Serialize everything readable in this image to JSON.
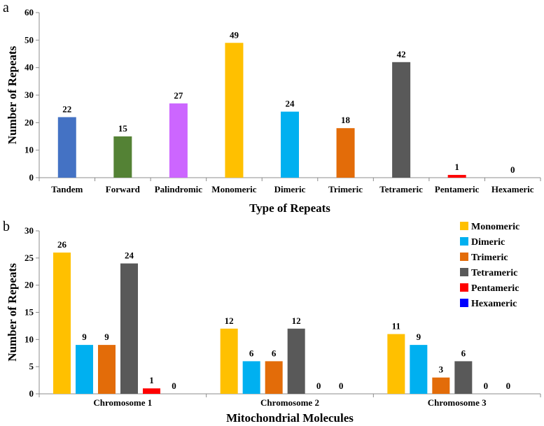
{
  "chart_data": [
    {
      "panel_label": "a",
      "type": "bar",
      "title": "",
      "xlabel": "Type of Repeats",
      "ylabel": "Number of Repeats",
      "ylim": [
        0,
        60
      ],
      "yticks": [
        0,
        10,
        20,
        30,
        40,
        50,
        60
      ],
      "grid": false,
      "categories": [
        "Tandem",
        "Forward",
        "Palindromic",
        "Monomeric",
        "Dimeric",
        "Trimeric",
        "Tetrameric",
        "Pentameric",
        "Hexameric"
      ],
      "values": [
        22,
        15,
        27,
        49,
        24,
        18,
        42,
        1,
        0
      ],
      "data_labels": [
        "22",
        "15",
        "27",
        "49",
        "24",
        "18",
        "42",
        "1",
        "0"
      ],
      "colors": [
        "#4472C4",
        "#548235",
        "#CC66FF",
        "#FFC000",
        "#00B0F0",
        "#E36C09",
        "#595959",
        "#FF0000",
        "#0000FF"
      ]
    },
    {
      "panel_label": "b",
      "type": "bar",
      "title": "",
      "xlabel": "Mitochondrial Molecules",
      "ylabel": "Number of Repeats",
      "ylim": [
        0,
        30
      ],
      "yticks": [
        0,
        5,
        10,
        15,
        20,
        25,
        30
      ],
      "grid": false,
      "legend_position": "top-right",
      "categories": [
        "Chromosome 1",
        "Chromosome 2",
        "Chromosome 3"
      ],
      "series": [
        {
          "name": "Monomeric",
          "color": "#FFC000",
          "values": [
            26,
            12,
            11
          ],
          "data_labels": [
            "26",
            "12",
            "11"
          ]
        },
        {
          "name": "Dimeric",
          "color": "#00B0F0",
          "values": [
            9,
            6,
            9
          ],
          "data_labels": [
            "9",
            "6",
            "9"
          ]
        },
        {
          "name": "Trimeric",
          "color": "#E36C09",
          "values": [
            9,
            6,
            3
          ],
          "data_labels": [
            "9",
            "6",
            "3"
          ]
        },
        {
          "name": "Tetrameric",
          "color": "#595959",
          "values": [
            24,
            12,
            6
          ],
          "data_labels": [
            "24",
            "12",
            "6"
          ]
        },
        {
          "name": "Pentameric",
          "color": "#FF0000",
          "values": [
            1,
            0,
            0
          ],
          "data_labels": [
            "1",
            "0",
            "0"
          ]
        },
        {
          "name": "Hexameric",
          "color": "#0000FF",
          "values": [
            0,
            0,
            0
          ],
          "data_labels": [
            "0",
            "0",
            "0"
          ]
        }
      ]
    }
  ]
}
